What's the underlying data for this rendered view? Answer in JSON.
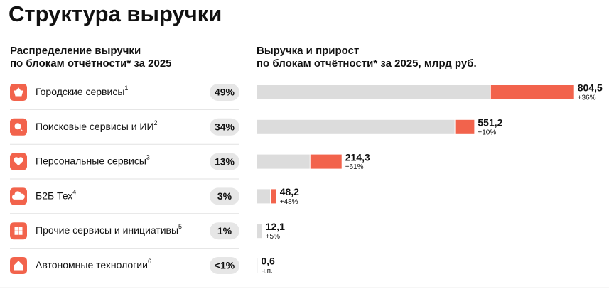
{
  "title": "Структура выручки",
  "share_panel": {
    "heading": [
      "Распределение выручки",
      "по блокам отчётности* за 2025"
    ],
    "rows": [
      {
        "label": "Городские сервисы",
        "note": "1",
        "share": "49%"
      },
      {
        "label": "Поисковые сервисы и ИИ",
        "note": "2",
        "share": "34%"
      },
      {
        "label": "Персональные сервисы",
        "note": "3",
        "share": "13%"
      },
      {
        "label": "Б2Б Тех",
        "note": "4",
        "share": "3%"
      },
      {
        "label": "Прочие сервисы и инициативы",
        "note": "5",
        "share": "1%"
      },
      {
        "label": "Автономные технологии",
        "note": "6",
        "share": "<1%"
      }
    ]
  },
  "chart_data": {
    "type": "bar",
    "orientation": "horizontal",
    "title": [
      "Выручка и прирост",
      "по блокам отчётности* за 2025, млрд руб."
    ],
    "values": [
      804.5,
      551.2,
      214.3,
      48.2,
      12.1,
      0.6
    ],
    "value_labels": [
      "804,5",
      "551,2",
      "214,3",
      "48,2",
      "12,1",
      "0,6"
    ],
    "growth": [
      36,
      10,
      61,
      48,
      5,
      null
    ],
    "growth_labels": [
      "+36%",
      "+10%",
      "+61%",
      "+48%",
      "+5%",
      "н.п."
    ],
    "base_color": "#dcdcdc",
    "growth_color": "#f2634c",
    "xlim": [
      0,
      805
    ]
  }
}
